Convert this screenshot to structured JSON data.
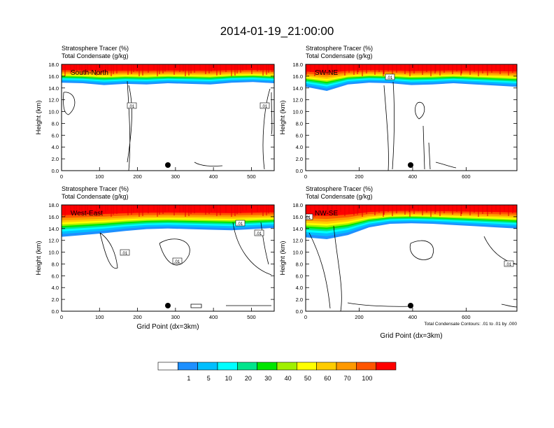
{
  "figure": {
    "title": "2014-01-19_21:00:00"
  },
  "colorbar": {
    "labels": [
      "1",
      "5",
      "10",
      "20",
      "30",
      "40",
      "50",
      "60",
      "70",
      "100"
    ],
    "colors": [
      "#ffffff",
      "#1e90ff",
      "#00bfff",
      "#00ffff",
      "#00e58c",
      "#00e600",
      "#a0f000",
      "#ffff00",
      "#ffcc00",
      "#ff9900",
      "#ff5500",
      "#ff0000"
    ]
  },
  "chart_data": [
    {
      "type": "heatmap",
      "panel": "top-left",
      "title_lines": [
        "Stratosphere Tracer   (%)",
        "Total Condensate   (g/kg)"
      ],
      "label": "South-North",
      "ylabel": "Height (km)",
      "xlabel": "",
      "xlim": [
        0,
        560
      ],
      "ylim": [
        0,
        18
      ],
      "xticks": [
        "0",
        "100",
        "200",
        "300",
        "400",
        "500"
      ],
      "xtick_values": [
        0,
        100,
        200,
        300,
        400,
        500
      ],
      "yticks": [
        "0.0",
        "2.0",
        "4.0",
        "6.0",
        "8.0",
        "10.0",
        "12.0",
        "14.0",
        "16.0",
        "18.0"
      ],
      "contour_labels": [
        ".01",
        ".01"
      ],
      "tracer_base_km": [
        14.9,
        14.8,
        14.5,
        14.7,
        14.6,
        14.8,
        14.7,
        14.6,
        14.9,
        15.0,
        14.8
      ]
    },
    {
      "type": "heatmap",
      "panel": "top-right",
      "title_lines": [
        "Stratosphere Tracer   (%)",
        "Total Condensate   (g/kg)"
      ],
      "label": "SW-NE",
      "ylabel": "Height (km)",
      "xlabel": "",
      "xlim": [
        0,
        790
      ],
      "ylim": [
        0,
        18
      ],
      "xticks": [
        "0",
        "200",
        "400",
        "600"
      ],
      "xtick_values": [
        0,
        200,
        400,
        600
      ],
      "yticks": [
        "0.0",
        "2.0",
        "4.0",
        "6.0",
        "8.0",
        "10.0",
        "12.0",
        "14.0",
        "16.0",
        "18.0"
      ],
      "contour_labels": [
        ".01"
      ],
      "tracer_base_km": [
        14.2,
        13.5,
        14.6,
        14.9,
        14.8,
        14.5,
        14.6,
        14.8,
        14.6,
        14.4,
        14.2
      ]
    },
    {
      "type": "heatmap",
      "panel": "bottom-left",
      "title_lines": [
        "Stratosphere Tracer   (%)",
        "Total Condensate   (g/kg)"
      ],
      "label": "West-East",
      "ylabel": "Height (km)",
      "xlabel": "Grid Point (dx=3km)",
      "xlim": [
        0,
        560
      ],
      "ylim": [
        0,
        18
      ],
      "xticks": [
        "0",
        "100",
        "200",
        "300",
        "400",
        "500"
      ],
      "xtick_values": [
        0,
        100,
        200,
        300,
        400,
        500
      ],
      "yticks": [
        "0.0",
        "2.0",
        "4.0",
        "6.0",
        "8.0",
        "10.0",
        "12.0",
        "14.0",
        "16.0",
        "18.0"
      ],
      "contour_labels": [
        ".01",
        ".01",
        ".01",
        ".01"
      ],
      "tracer_base_km": [
        12.6,
        12.9,
        13.2,
        13.6,
        13.9,
        14.0,
        13.9,
        13.8,
        13.7,
        13.9,
        14.1
      ]
    },
    {
      "type": "heatmap",
      "panel": "bottom-right",
      "title_lines": [
        "Stratosphere Tracer   (%)",
        "Total Condensate   (g/kg)"
      ],
      "label": "NW-SE",
      "ylabel": "Height (km)",
      "xlabel": "Grid Point (dx=3km)",
      "xlim": [
        0,
        790
      ],
      "ylim": [
        0,
        18
      ],
      "xticks": [
        "0",
        "200",
        "400",
        "600"
      ],
      "xtick_values": [
        0,
        200,
        400,
        600
      ],
      "yticks": [
        "0.0",
        "2.0",
        "4.0",
        "6.0",
        "8.0",
        "10.0",
        "12.0",
        "14.0",
        "16.0",
        "18.0"
      ],
      "contour_labels": [
        ".01",
        ".01"
      ],
      "tracer_base_km": [
        12.5,
        12.2,
        12.9,
        14.2,
        14.8,
        14.9,
        14.8,
        14.6,
        14.4,
        14.2,
        14.0
      ],
      "footnote": "Total Condensate Contours: .01 to .01 by .000"
    }
  ]
}
